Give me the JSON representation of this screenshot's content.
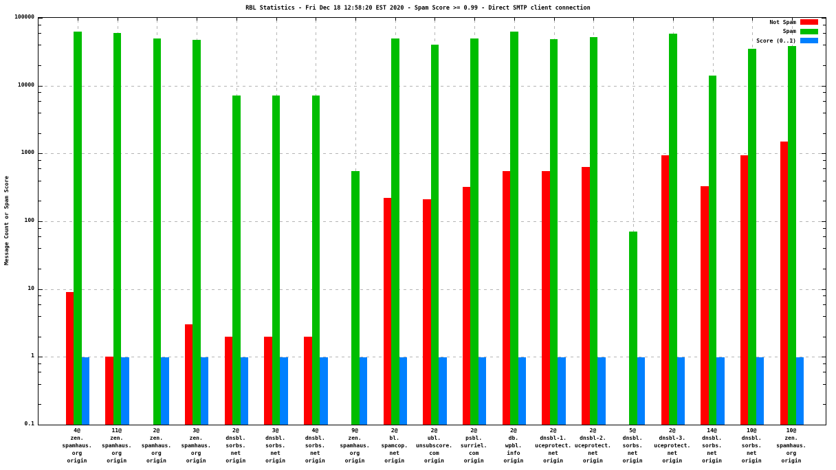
{
  "chart_data": {
    "type": "bar",
    "title": "RBL Statistics - Fri Dec 18 12:58:20 EST 2020 - Spam Score >= 0.99 - Direct SMTP client connection",
    "ylabel": "Message Count or Spam Score",
    "y_scale": "log",
    "ylim": [
      0.1,
      100000
    ],
    "y_ticks": [
      "100000",
      "10000",
      "1000",
      "100",
      "10",
      "1",
      "0.1"
    ],
    "grid": true,
    "legend_position": "top-right-inside",
    "categories": [
      [
        "4@",
        "zen.",
        "spamhaus.",
        "org",
        "origin"
      ],
      [
        "11@",
        "zen.",
        "spamhaus.",
        "org",
        "origin"
      ],
      [
        "2@",
        "zen.",
        "spamhaus.",
        "org",
        "origin"
      ],
      [
        "3@",
        "zen.",
        "spamhaus.",
        "org",
        "origin"
      ],
      [
        "2@",
        "dnsbl.",
        "sorbs.",
        "net",
        "origin"
      ],
      [
        "3@",
        "dnsbl.",
        "sorbs.",
        "net",
        "origin"
      ],
      [
        "4@",
        "dnsbl.",
        "sorbs.",
        "net",
        "origin"
      ],
      [
        "9@",
        "zen.",
        "spamhaus.",
        "org",
        "origin"
      ],
      [
        "2@",
        "bl.",
        "spamcop.",
        "net",
        "origin"
      ],
      [
        "2@",
        "ubl.",
        "unsubscore.",
        "com",
        "origin"
      ],
      [
        "2@",
        "psbl.",
        "surriel.",
        "com",
        "origin"
      ],
      [
        "2@",
        "db.",
        "wpbl.",
        "info",
        "origin"
      ],
      [
        "2@",
        "dnsbl-1.",
        "uceprotect.",
        "net",
        "origin"
      ],
      [
        "2@",
        "dnsbl-2.",
        "uceprotect.",
        "net",
        "origin"
      ],
      [
        "5@",
        "dnsbl.",
        "sorbs.",
        "net",
        "origin"
      ],
      [
        "2@",
        "dnsbl-3.",
        "uceprotect.",
        "net",
        "origin"
      ],
      [
        "14@",
        "dnsbl.",
        "sorbs.",
        "net",
        "origin"
      ],
      [
        "10@",
        "dnsbl.",
        "sorbs.",
        "net",
        "origin"
      ],
      [
        "10@",
        "zen.",
        "spamhaus.",
        "org",
        "origin"
      ]
    ],
    "series": [
      {
        "name": "Not Spam",
        "color": "#ff0000",
        "values": [
          9,
          1,
          null,
          3,
          2,
          2,
          2,
          null,
          220,
          210,
          320,
          550,
          550,
          630,
          null,
          930,
          330,
          950,
          1500
        ]
      },
      {
        "name": "Spam",
        "color": "#00bd00",
        "values": [
          63000,
          60000,
          50000,
          47000,
          7200,
          7200,
          7200,
          550,
          50000,
          40000,
          50000,
          62000,
          48000,
          52000,
          70,
          58000,
          14000,
          35000,
          38000
        ]
      },
      {
        "name": "Score (0..1)",
        "color": "#0080ff",
        "values": [
          0.99,
          0.99,
          0.99,
          0.99,
          0.99,
          0.99,
          0.99,
          0.99,
          0.99,
          0.99,
          0.99,
          0.99,
          0.99,
          0.99,
          0.99,
          0.99,
          0.99,
          0.99,
          0.99
        ]
      }
    ],
    "grid_color": "#b4b4b4"
  }
}
